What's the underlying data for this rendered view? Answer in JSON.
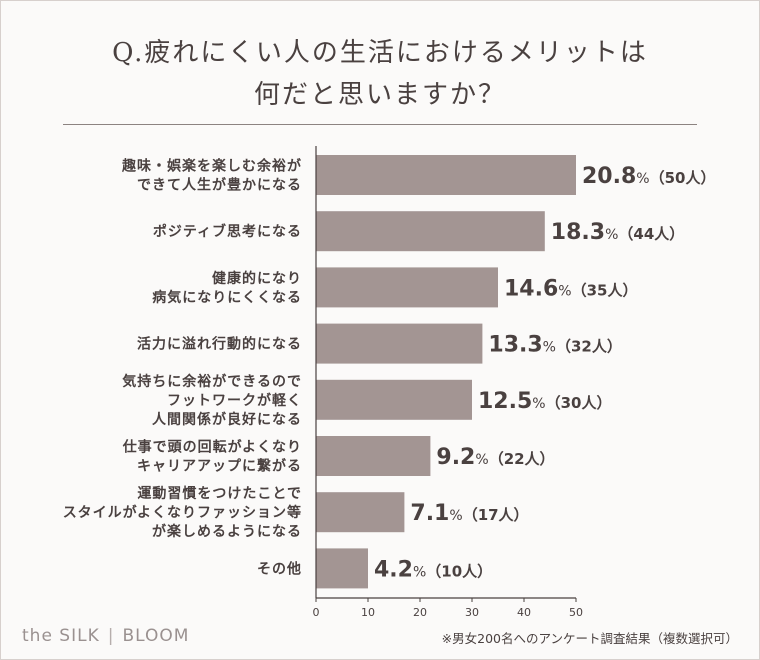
{
  "header": {
    "title_line1": "Q.疲れにくい人の生活におけるメリットは",
    "title_line2": "何だと思いますか？"
  },
  "chart_data": {
    "type": "bar",
    "orientation": "horizontal",
    "title": "Q.疲れにくい人の生活におけるメリットは何だと思いますか？",
    "xlim": [
      0,
      50
    ],
    "xticks": [
      0,
      10,
      20,
      30,
      40,
      50
    ],
    "grid": false,
    "bar_color": "#a39593",
    "categories": [
      "趣味・娯楽を楽しむ余裕が\nできて人生が豊かになる",
      "ポジティブ思考になる",
      "健康的になり\n病気になりにくくなる",
      "活力に溢れ行動的になる",
      "気持ちに余裕ができるので\nフットワークが軽く\n人間関係が良好になる",
      "仕事で頭の回転がよくなり\nキャリアアップに繋がる",
      "運動習慣をつけたことで\nスタイルがよくなりファッション等\nが楽しめるようになる",
      "その他"
    ],
    "values": [
      50,
      44,
      35,
      32,
      30,
      22,
      17,
      10
    ],
    "percent_labels": [
      "20.8",
      "18.3",
      "14.6",
      "13.3",
      "12.5",
      "9.2",
      "7.1",
      "4.2"
    ],
    "count_labels": [
      "（50人）",
      "（44人）",
      "（35人）",
      "（32人）",
      "（30人）",
      "（22人）",
      "（17人）",
      "（10人）"
    ],
    "percent_unit": "%"
  },
  "footer": {
    "brand_left": "the SILK",
    "brand_sep": "|",
    "brand_right": "BLOOM",
    "note": "※男女200名へのアンケート調査結果（複数選択可）"
  }
}
